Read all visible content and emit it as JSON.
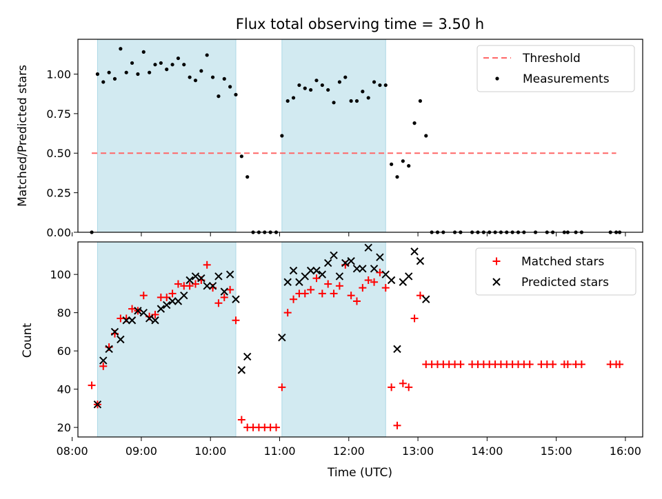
{
  "title": "Flux total observing time = 3.50 h",
  "colors": {
    "band": "#add8e6",
    "threshold": "#ff6666",
    "matched": "#ff0000",
    "predicted": "#000000",
    "measurement": "#000000"
  },
  "chart_data": [
    {
      "type": "scatter",
      "panel": "top",
      "ylabel": "Matched/Predicted stars",
      "xlabel": "",
      "ylim": [
        0,
        1.22
      ],
      "xlim": [
        "08:05",
        "16:15"
      ],
      "yticks": [
        "0.00",
        "0.25",
        "0.50",
        "0.75",
        "1.00"
      ],
      "observing_windows": [
        [
          "08:22",
          "10:22"
        ],
        [
          "11:02",
          "12:32"
        ]
      ],
      "threshold": {
        "value": 0.5,
        "x_start": "08:17",
        "x_end": "15:52",
        "label": "Threshold"
      },
      "legend": [
        "Threshold",
        "Measurements"
      ],
      "legend_position": "top-right",
      "series": [
        {
          "name": "Measurements",
          "points": [
            [
              "08:17",
              0.0
            ],
            [
              "08:22",
              1.0
            ],
            [
              "08:27",
              0.95
            ],
            [
              "08:32",
              1.01
            ],
            [
              "08:37",
              0.97
            ],
            [
              "08:42",
              1.16
            ],
            [
              "08:47",
              1.01
            ],
            [
              "08:52",
              1.07
            ],
            [
              "08:57",
              1.0
            ],
            [
              "09:02",
              1.14
            ],
            [
              "09:07",
              1.01
            ],
            [
              "09:12",
              1.06
            ],
            [
              "09:17",
              1.07
            ],
            [
              "09:22",
              1.03
            ],
            [
              "09:27",
              1.06
            ],
            [
              "09:32",
              1.1
            ],
            [
              "09:37",
              1.06
            ],
            [
              "09:42",
              0.98
            ],
            [
              "09:47",
              0.96
            ],
            [
              "09:52",
              1.02
            ],
            [
              "09:57",
              1.12
            ],
            [
              "10:02",
              0.98
            ],
            [
              "10:07",
              0.86
            ],
            [
              "10:12",
              0.97
            ],
            [
              "10:17",
              0.92
            ],
            [
              "10:22",
              0.87
            ],
            [
              "10:27",
              0.48
            ],
            [
              "10:32",
              0.35
            ],
            [
              "10:37",
              0.0
            ],
            [
              "10:42",
              0.0
            ],
            [
              "10:47",
              0.0
            ],
            [
              "10:52",
              0.0
            ],
            [
              "10:57",
              0.0
            ],
            [
              "11:02",
              0.61
            ],
            [
              "11:07",
              0.83
            ],
            [
              "11:12",
              0.85
            ],
            [
              "11:17",
              0.93
            ],
            [
              "11:22",
              0.91
            ],
            [
              "11:27",
              0.9
            ],
            [
              "11:32",
              0.96
            ],
            [
              "11:37",
              0.93
            ],
            [
              "11:42",
              0.9
            ],
            [
              "11:47",
              0.82
            ],
            [
              "11:52",
              0.95
            ],
            [
              "11:57",
              0.98
            ],
            [
              "12:02",
              0.83
            ],
            [
              "12:07",
              0.83
            ],
            [
              "12:12",
              0.89
            ],
            [
              "12:17",
              0.85
            ],
            [
              "12:22",
              0.95
            ],
            [
              "12:27",
              0.93
            ],
            [
              "12:32",
              0.93
            ],
            [
              "12:37",
              0.43
            ],
            [
              "12:42",
              0.35
            ],
            [
              "12:47",
              0.45
            ],
            [
              "12:52",
              0.42
            ],
            [
              "12:57",
              0.69
            ],
            [
              "13:02",
              0.83
            ],
            [
              "13:07",
              0.61
            ],
            [
              "13:12",
              0.0
            ],
            [
              "13:17",
              0.0
            ],
            [
              "13:22",
              0.0
            ],
            [
              "13:32",
              0.0
            ],
            [
              "13:37",
              0.0
            ],
            [
              "13:47",
              0.0
            ],
            [
              "13:52",
              0.0
            ],
            [
              "13:57",
              0.0
            ],
            [
              "14:02",
              0.0
            ],
            [
              "14:07",
              0.0
            ],
            [
              "14:12",
              0.0
            ],
            [
              "14:17",
              0.0
            ],
            [
              "14:22",
              0.0
            ],
            [
              "14:27",
              0.0
            ],
            [
              "14:32",
              0.0
            ],
            [
              "14:42",
              0.0
            ],
            [
              "14:52",
              0.0
            ],
            [
              "14:57",
              0.0
            ],
            [
              "15:07",
              0.0
            ],
            [
              "15:10",
              0.0
            ],
            [
              "15:17",
              0.0
            ],
            [
              "15:22",
              0.0
            ],
            [
              "15:47",
              0.0
            ],
            [
              "15:52",
              0.0
            ],
            [
              "15:55",
              0.0
            ]
          ]
        }
      ]
    },
    {
      "type": "scatter",
      "panel": "bottom",
      "ylabel": "Count",
      "xlabel": "Time (UTC)",
      "ylim": [
        15,
        117
      ],
      "xlim": [
        "08:05",
        "16:15"
      ],
      "yticks": [
        "20",
        "40",
        "60",
        "80",
        "100"
      ],
      "xticks": [
        "08:00",
        "09:00",
        "10:00",
        "11:00",
        "12:00",
        "13:00",
        "14:00",
        "15:00",
        "16:00"
      ],
      "observing_windows": [
        [
          "08:22",
          "10:22"
        ],
        [
          "11:02",
          "12:32"
        ]
      ],
      "legend": [
        "Matched stars",
        "Predicted stars"
      ],
      "legend_position": "top-right",
      "series": [
        {
          "name": "Matched stars",
          "marker": "plus",
          "points": [
            [
              "08:17",
              42
            ],
            [
              "08:22",
              32
            ],
            [
              "08:27",
              52
            ],
            [
              "08:32",
              62
            ],
            [
              "08:37",
              69
            ],
            [
              "08:42",
              77
            ],
            [
              "08:47",
              77
            ],
            [
              "08:52",
              82
            ],
            [
              "08:57",
              81
            ],
            [
              "09:02",
              89
            ],
            [
              "09:07",
              78
            ],
            [
              "09:12",
              79
            ],
            [
              "09:17",
              88
            ],
            [
              "09:22",
              88
            ],
            [
              "09:27",
              90
            ],
            [
              "09:32",
              95
            ],
            [
              "09:37",
              94
            ],
            [
              "09:42",
              94
            ],
            [
              "09:47",
              95
            ],
            [
              "09:52",
              97
            ],
            [
              "09:57",
              105
            ],
            [
              "10:02",
              93
            ],
            [
              "10:07",
              85
            ],
            [
              "10:12",
              88
            ],
            [
              "10:17",
              92
            ],
            [
              "10:22",
              76
            ],
            [
              "10:27",
              24
            ],
            [
              "10:32",
              20
            ],
            [
              "10:37",
              20
            ],
            [
              "10:42",
              20
            ],
            [
              "10:47",
              20
            ],
            [
              "10:52",
              20
            ],
            [
              "10:57",
              20
            ],
            [
              "11:02",
              41
            ],
            [
              "11:07",
              80
            ],
            [
              "11:12",
              87
            ],
            [
              "11:17",
              90
            ],
            [
              "11:22",
              90
            ],
            [
              "11:27",
              92
            ],
            [
              "11:32",
              98
            ],
            [
              "11:37",
              90
            ],
            [
              "11:42",
              95
            ],
            [
              "11:47",
              90
            ],
            [
              "11:52",
              94
            ],
            [
              "11:57",
              105
            ],
            [
              "12:02",
              89
            ],
            [
              "12:07",
              86
            ],
            [
              "12:12",
              93
            ],
            [
              "12:17",
              97
            ],
            [
              "12:22",
              96
            ],
            [
              "12:27",
              101
            ],
            [
              "12:32",
              93
            ],
            [
              "12:37",
              41
            ],
            [
              "12:42",
              21
            ],
            [
              "12:47",
              43
            ],
            [
              "12:52",
              41
            ],
            [
              "12:57",
              77
            ],
            [
              "13:02",
              89
            ],
            [
              "13:07",
              53
            ],
            [
              "13:12",
              53
            ],
            [
              "13:17",
              53
            ],
            [
              "13:22",
              53
            ],
            [
              "13:27",
              53
            ],
            [
              "13:32",
              53
            ],
            [
              "13:37",
              53
            ],
            [
              "13:47",
              53
            ],
            [
              "13:52",
              53
            ],
            [
              "13:57",
              53
            ],
            [
              "14:02",
              53
            ],
            [
              "14:07",
              53
            ],
            [
              "14:12",
              53
            ],
            [
              "14:17",
              53
            ],
            [
              "14:22",
              53
            ],
            [
              "14:27",
              53
            ],
            [
              "14:32",
              53
            ],
            [
              "14:37",
              53
            ],
            [
              "14:47",
              53
            ],
            [
              "14:52",
              53
            ],
            [
              "14:57",
              53
            ],
            [
              "15:07",
              53
            ],
            [
              "15:10",
              53
            ],
            [
              "15:17",
              53
            ],
            [
              "15:22",
              53
            ],
            [
              "15:47",
              53
            ],
            [
              "15:52",
              53
            ],
            [
              "15:55",
              53
            ]
          ]
        },
        {
          "name": "Predicted stars",
          "marker": "x",
          "points": [
            [
              "08:22",
              32
            ],
            [
              "08:27",
              55
            ],
            [
              "08:32",
              61
            ],
            [
              "08:37",
              70
            ],
            [
              "08:42",
              66
            ],
            [
              "08:47",
              76
            ],
            [
              "08:52",
              76
            ],
            [
              "08:57",
              81
            ],
            [
              "09:02",
              80
            ],
            [
              "09:07",
              77
            ],
            [
              "09:12",
              76
            ],
            [
              "09:17",
              82
            ],
            [
              "09:22",
              84
            ],
            [
              "09:27",
              86
            ],
            [
              "09:32",
              86
            ],
            [
              "09:37",
              89
            ],
            [
              "09:42",
              97
            ],
            [
              "09:47",
              99
            ],
            [
              "09:52",
              98
            ],
            [
              "09:57",
              94
            ],
            [
              "10:02",
              94
            ],
            [
              "10:07",
              99
            ],
            [
              "10:12",
              91
            ],
            [
              "10:17",
              100
            ],
            [
              "10:22",
              87
            ],
            [
              "10:27",
              50
            ],
            [
              "10:32",
              57
            ],
            [
              "11:02",
              67
            ],
            [
              "11:07",
              96
            ],
            [
              "11:12",
              102
            ],
            [
              "11:17",
              96
            ],
            [
              "11:22",
              99
            ],
            [
              "11:27",
              102
            ],
            [
              "11:32",
              102
            ],
            [
              "11:37",
              100
            ],
            [
              "11:42",
              106
            ],
            [
              "11:47",
              110
            ],
            [
              "11:52",
              99
            ],
            [
              "11:57",
              106
            ],
            [
              "12:02",
              107
            ],
            [
              "12:07",
              103
            ],
            [
              "12:12",
              103
            ],
            [
              "12:17",
              114
            ],
            [
              "12:22",
              103
            ],
            [
              "12:27",
              109
            ],
            [
              "12:32",
              100
            ],
            [
              "12:37",
              97
            ],
            [
              "12:42",
              61
            ],
            [
              "12:47",
              96
            ],
            [
              "12:52",
              99
            ],
            [
              "12:57",
              112
            ],
            [
              "13:02",
              107
            ],
            [
              "13:07",
              87
            ]
          ]
        }
      ]
    }
  ]
}
